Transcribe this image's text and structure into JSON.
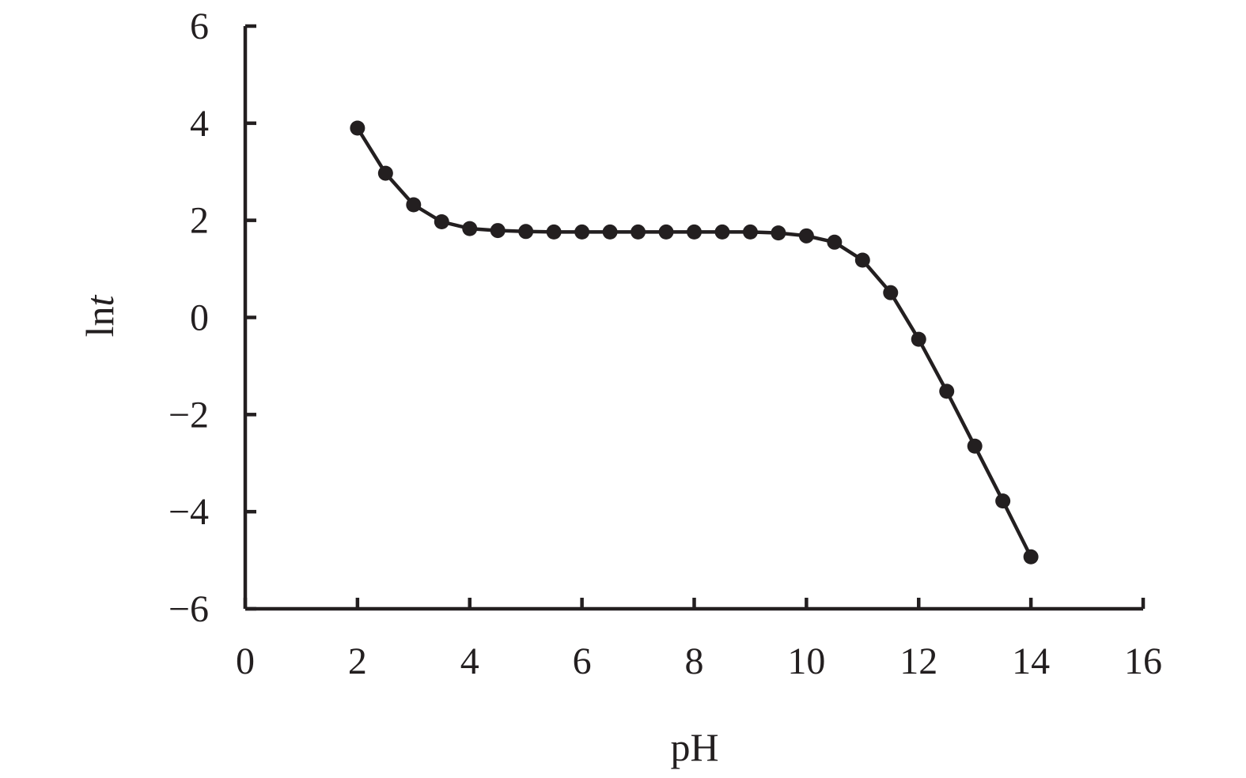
{
  "chart_data": {
    "type": "line",
    "title": "",
    "xlabel": "pH",
    "ylabel_main": "ln",
    "ylabel_italic": "t",
    "xlim": [
      0,
      16
    ],
    "ylim": [
      -6,
      6
    ],
    "x_ticks": [
      0,
      2,
      4,
      6,
      8,
      10,
      12,
      14,
      16
    ],
    "y_ticks": [
      6,
      4,
      2,
      0,
      -2,
      -4,
      -6
    ],
    "x_tick_labels": [
      "0",
      "2",
      "4",
      "6",
      "8",
      "10",
      "12",
      "14",
      "16"
    ],
    "y_tick_labels": [
      "6",
      "4",
      "2",
      "0",
      "−2",
      "−4",
      "−6"
    ],
    "grid": false,
    "legend": "none",
    "series": [
      {
        "marker": "circle",
        "color": "#231f20",
        "x": [
          2,
          2.5,
          3,
          3.5,
          4,
          4.5,
          5,
          5.5,
          6,
          6.5,
          7,
          7.5,
          8,
          8.5,
          9,
          9.5,
          10,
          10.5,
          11,
          11.5,
          12,
          12.5,
          13,
          13.5,
          14
        ],
        "y": [
          3.9,
          2.97,
          2.32,
          1.97,
          1.83,
          1.79,
          1.77,
          1.76,
          1.76,
          1.76,
          1.76,
          1.76,
          1.76,
          1.76,
          1.76,
          1.74,
          1.68,
          1.55,
          1.18,
          0.51,
          -0.45,
          -1.52,
          -2.65,
          -3.78,
          -4.93
        ]
      }
    ]
  }
}
